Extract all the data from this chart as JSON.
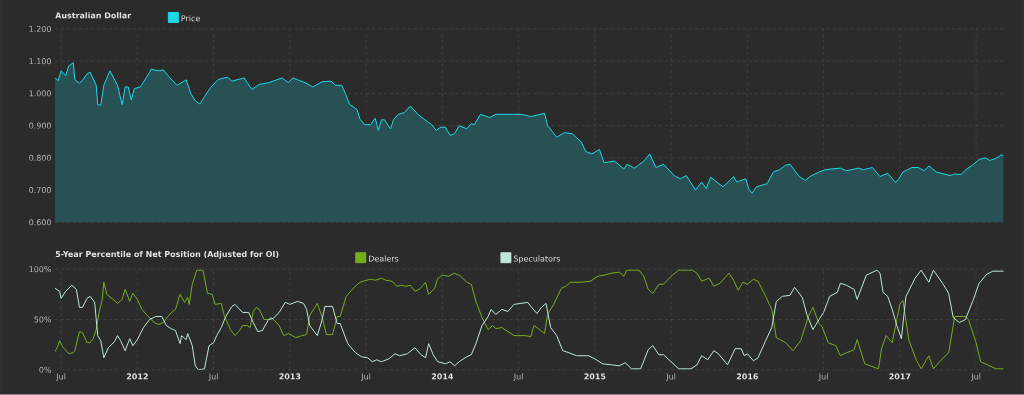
{
  "chart_data": [
    {
      "type": "area",
      "title": "Australian Dollar",
      "legend": "top left",
      "grid": true,
      "tick_labels": "y",
      "xlim": [
        2011.46,
        2017.69
      ],
      "ylim": [
        0.6,
        1.2
      ],
      "xticks": [
        {
          "value": 2011.5,
          "label": null
        },
        {
          "value": 2012,
          "label": null
        },
        {
          "value": 2012.5,
          "label": null
        },
        {
          "value": 2013,
          "label": null
        },
        {
          "value": 2013.5,
          "label": null
        },
        {
          "value": 2014,
          "label": null
        },
        {
          "value": 2014.5,
          "label": null
        },
        {
          "value": 2015,
          "label": null
        },
        {
          "value": 2015.5,
          "label": null
        },
        {
          "value": 2016,
          "label": null
        },
        {
          "value": 2016.5,
          "label": null
        },
        {
          "value": 2017,
          "label": null
        },
        {
          "value": 2017.5,
          "label": null
        }
      ],
      "yticks": [
        {
          "value": 0.6,
          "label": "0.600"
        },
        {
          "value": 0.7,
          "label": "0.700"
        },
        {
          "value": 0.8,
          "label": "0.800"
        },
        {
          "value": 0.9,
          "label": "0.900"
        },
        {
          "value": 1.0,
          "label": "1.000"
        },
        {
          "value": 1.1,
          "label": "1.100"
        },
        {
          "value": 1.2,
          "label": "1.200"
        }
      ],
      "series": [
        {
          "name": "Price",
          "color": "#19d9e8",
          "x": [
            2011.46,
            2011.48,
            2011.5,
            2011.53,
            2011.55,
            2011.58,
            2011.59,
            2011.62,
            2011.64,
            2011.67,
            2011.69,
            2011.73,
            2011.74,
            2011.76,
            2011.78,
            2011.82,
            2011.87,
            2011.9,
            2011.92,
            2011.94,
            2011.96,
            2011.98,
            2012.02,
            2012.08,
            2012.09,
            2012.14,
            2012.17,
            2012.21,
            2012.26,
            2012.32,
            2012.35,
            2012.38,
            2012.41,
            2012.45,
            2012.48,
            2012.53,
            2012.59,
            2012.62,
            2012.7,
            2012.75,
            2012.8,
            2012.86,
            2012.95,
            2012.99,
            2013.02,
            2013.1,
            2013.15,
            2013.21,
            2013.27,
            2013.3,
            2013.34,
            2013.37,
            2013.39,
            2013.44,
            2013.46,
            2013.49,
            2013.53,
            2013.56,
            2013.58,
            2013.6,
            2013.62,
            2013.66,
            2013.68,
            2013.71,
            2013.75,
            2013.79,
            2013.84,
            2013.88,
            2013.93,
            2013.96,
            2013.99,
            2014.02,
            2014.05,
            2014.08,
            2014.11,
            2014.16,
            2014.19,
            2014.21,
            2014.25,
            2014.31,
            2014.35,
            2014.43,
            2014.52,
            2014.58,
            2014.67,
            2014.69,
            2014.75,
            2014.8,
            2014.85,
            2014.91,
            2014.94,
            2014.98,
            2015.03,
            2015.06,
            2015.13,
            2015.19,
            2015.21,
            2015.26,
            2015.32,
            2015.36,
            2015.4,
            2015.45,
            2015.52,
            2015.56,
            2015.6,
            2015.66,
            2015.7,
            2015.73,
            2015.76,
            2015.84,
            2015.89,
            2015.91,
            2015.93,
            2015.99,
            2016.01,
            2016.03,
            2016.06,
            2016.13,
            2016.17,
            2016.21,
            2016.25,
            2016.28,
            2016.34,
            2016.38,
            2016.41,
            2016.47,
            2016.51,
            2016.56,
            2016.61,
            2016.65,
            2016.73,
            2016.76,
            2016.82,
            2016.87,
            2016.92,
            2016.97,
            2016.99,
            2017.02,
            2017.08,
            2017.12,
            2017.16,
            2017.19,
            2017.24,
            2017.33,
            2017.36,
            2017.4,
            2017.44,
            2017.47,
            2017.52,
            2017.56,
            2017.59,
            2017.63,
            2017.67,
            2017.68
          ],
          "values": [
            1.049,
            1.039,
            1.07,
            1.055,
            1.085,
            1.095,
            1.042,
            1.032,
            1.04,
            1.06,
            1.066,
            1.025,
            0.965,
            0.963,
            1.025,
            1.07,
            1.025,
            0.965,
            1.02,
            1.02,
            0.98,
            1.015,
            1.02,
            1.065,
            1.075,
            1.07,
            1.073,
            1.05,
            1.025,
            1.042,
            1.0,
            0.977,
            0.967,
            0.997,
            1.018,
            1.043,
            1.05,
            1.038,
            1.048,
            1.012,
            1.028,
            1.033,
            1.048,
            1.033,
            1.048,
            1.033,
            1.02,
            1.036,
            1.038,
            1.025,
            1.025,
            0.993,
            0.967,
            0.95,
            0.92,
            0.903,
            0.903,
            0.923,
            0.885,
            0.918,
            0.918,
            0.89,
            0.918,
            0.935,
            0.94,
            0.961,
            0.935,
            0.92,
            0.903,
            0.885,
            0.895,
            0.895,
            0.87,
            0.875,
            0.9,
            0.89,
            0.906,
            0.903,
            0.935,
            0.925,
            0.935,
            0.935,
            0.935,
            0.928,
            0.938,
            0.9,
            0.864,
            0.878,
            0.875,
            0.85,
            0.82,
            0.812,
            0.826,
            0.785,
            0.79,
            0.765,
            0.78,
            0.768,
            0.789,
            0.812,
            0.77,
            0.78,
            0.745,
            0.735,
            0.745,
            0.7,
            0.725,
            0.705,
            0.74,
            0.71,
            0.732,
            0.742,
            0.725,
            0.735,
            0.702,
            0.69,
            0.71,
            0.72,
            0.756,
            0.763,
            0.777,
            0.78,
            0.742,
            0.73,
            0.742,
            0.756,
            0.763,
            0.766,
            0.768,
            0.76,
            0.768,
            0.763,
            0.77,
            0.742,
            0.752,
            0.724,
            0.732,
            0.756,
            0.77,
            0.77,
            0.76,
            0.775,
            0.756,
            0.745,
            0.75,
            0.748,
            0.766,
            0.775,
            0.795,
            0.8,
            0.792,
            0.798,
            0.81,
            0.805
          ]
        }
      ]
    },
    {
      "type": "line",
      "title": "5-Year Percentile of Net Position (Adjusted for OI)",
      "legend": "top left",
      "grid": true,
      "xlim": [
        2011.46,
        2017.69
      ],
      "ylim": [
        0,
        100
      ],
      "xticks": [
        {
          "value": 2011.5,
          "label": "Jul"
        },
        2012,
        {
          "value": 2012.5,
          "label": "Jul"
        },
        2013,
        {
          "value": 2013.5,
          "label": "Jul"
        },
        2014,
        {
          "value": 2014.5,
          "label": "Jul"
        },
        2015,
        {
          "value": 2015.5,
          "label": "Jul"
        },
        2016,
        {
          "value": 2016.5,
          "label": "Jul"
        },
        2017,
        {
          "value": 2017.5,
          "label": "Jul"
        }
      ],
      "yticks": [
        {
          "value": 0,
          "label": "0%"
        },
        {
          "value": 50,
          "label": "50%"
        },
        {
          "value": 100,
          "label": "100%"
        }
      ],
      "series": [
        {
          "name": "Dealers",
          "color": "#76ad1c",
          "x": [
            2011.46,
            2011.48,
            2011.49,
            2011.51,
            2011.55,
            2011.58,
            2011.59,
            2011.62,
            2011.64,
            2011.67,
            2011.69,
            2011.71,
            2011.73,
            2011.75,
            2011.77,
            2011.78,
            2011.8,
            2011.84,
            2011.87,
            2011.9,
            2011.92,
            2011.95,
            2011.97,
            2012.0,
            2012.03,
            2012.07,
            2012.11,
            2012.14,
            2012.17,
            2012.2,
            2012.23,
            2012.25,
            2012.28,
            2012.31,
            2012.33,
            2012.34,
            2012.36,
            2012.39,
            2012.43,
            2012.46,
            2012.49,
            2012.51,
            2012.55,
            2012.57,
            2012.61,
            2012.64,
            2012.67,
            2012.69,
            2012.72,
            2012.74,
            2012.76,
            2012.78,
            2012.8,
            2012.83,
            2012.86,
            2012.88,
            2012.93,
            2012.96,
            2012.99,
            2013.04,
            2013.08,
            2013.11,
            2013.13,
            2013.18,
            2013.21,
            2013.24,
            2013.28,
            2013.31,
            2013.33,
            2013.37,
            2013.41,
            2013.43,
            2013.46,
            2013.48,
            2013.53,
            2013.56,
            2013.6,
            2013.63,
            2013.67,
            2013.7,
            2013.73,
            2013.76,
            2013.79,
            2013.82,
            2013.85,
            2013.89,
            2013.91,
            2013.95,
            2013.97,
            2014.0,
            2014.04,
            2014.08,
            2014.12,
            2014.16,
            2014.19,
            2014.22,
            2014.26,
            2014.3,
            2014.33,
            2014.35,
            2014.39,
            2014.43,
            2014.47,
            2014.54,
            2014.58,
            2014.6,
            2014.63,
            2014.67,
            2014.69,
            2014.73,
            2014.78,
            2014.81,
            2014.84,
            2014.91,
            2014.97,
            2015.02,
            2015.06,
            2015.11,
            2015.16,
            2015.19,
            2015.21,
            2015.26,
            2015.29,
            2015.32,
            2015.35,
            2015.38,
            2015.42,
            2015.45,
            2015.5,
            2015.55,
            2015.6,
            2015.64,
            2015.67,
            2015.7,
            2015.75,
            2015.78,
            2015.82,
            2015.88,
            2015.91,
            2015.94,
            2015.97,
            2016.0,
            2016.04,
            2016.07,
            2016.12,
            2016.16,
            2016.19,
            2016.25,
            2016.3,
            2016.35,
            2016.4,
            2016.43,
            2016.47,
            2016.49,
            2016.53,
            2016.58,
            2016.61,
            2016.65,
            2016.7,
            2016.72,
            2016.77,
            2016.86,
            2016.88,
            2016.91,
            2016.95,
            2016.98,
            2017.0,
            2017.02,
            2017.06,
            2017.11,
            2017.14,
            2017.19,
            2017.22,
            2017.26,
            2017.32,
            2017.36,
            2017.39,
            2017.43,
            2017.45,
            2017.5,
            2017.53,
            2017.59,
            2017.63,
            2017.68
          ],
          "values": [
            18,
            24,
            29,
            23,
            16,
            17,
            19,
            38,
            37,
            27,
            27,
            31,
            40,
            58,
            70,
            87,
            75,
            70,
            66,
            70,
            80,
            68,
            76,
            70,
            60,
            53,
            47,
            45,
            47,
            53,
            58,
            60,
            75,
            67,
            72,
            65,
            85,
            99,
            99,
            76,
            75,
            65,
            66,
            54,
            40,
            34,
            39,
            44,
            44,
            42,
            58,
            62,
            60,
            50,
            50,
            52,
            44,
            34,
            36,
            32,
            34,
            35,
            54,
            66,
            53,
            35,
            35,
            53,
            53,
            73,
            80,
            83,
            87,
            88,
            90,
            89,
            91,
            89,
            88,
            83,
            84,
            83,
            84,
            78,
            80,
            87,
            75,
            81,
            91,
            94,
            93,
            96,
            93,
            87,
            85,
            68,
            52,
            40,
            44,
            41,
            42,
            38,
            34,
            34,
            33,
            44,
            41,
            36,
            55,
            65,
            81,
            83,
            87,
            87,
            88,
            93,
            94,
            96,
            97,
            93,
            99,
            99,
            99,
            93,
            80,
            76,
            85,
            85,
            93,
            99,
            99,
            99,
            96,
            88,
            91,
            83,
            86,
            96,
            89,
            79,
            87,
            85,
            90,
            88,
            73,
            60,
            32,
            27,
            19,
            29,
            53,
            62,
            46,
            43,
            27,
            24,
            14,
            17,
            20,
            30,
            6,
            1,
            21,
            34,
            27,
            50,
            65,
            69,
            29,
            9,
            1,
            14,
            1,
            8,
            17,
            53,
            53,
            53,
            50,
            27,
            8,
            4,
            1,
            1
          ]
        },
        {
          "name": "Speculators",
          "color": "#bfe6da",
          "x": [
            2011.46,
            2011.49,
            2011.5,
            2011.53,
            2011.57,
            2011.6,
            2011.62,
            2011.64,
            2011.67,
            2011.69,
            2011.72,
            2011.74,
            2011.76,
            2011.78,
            2011.81,
            2011.85,
            2011.87,
            2011.89,
            2011.92,
            2011.95,
            2011.97,
            2012.0,
            2012.04,
            2012.08,
            2012.12,
            2012.16,
            2012.19,
            2012.22,
            2012.25,
            2012.28,
            2012.29,
            2012.32,
            2012.33,
            2012.36,
            2012.38,
            2012.4,
            2012.44,
            2012.47,
            2012.5,
            2012.52,
            2012.55,
            2012.58,
            2012.62,
            2012.64,
            2012.69,
            2012.73,
            2012.76,
            2012.79,
            2012.82,
            2012.86,
            2012.89,
            2012.93,
            2012.97,
            2013.0,
            2013.05,
            2013.09,
            2013.11,
            2013.13,
            2013.18,
            2013.21,
            2013.23,
            2013.28,
            2013.31,
            2013.33,
            2013.38,
            2013.43,
            2013.47,
            2013.51,
            2013.54,
            2013.57,
            2013.6,
            2013.65,
            2013.69,
            2013.72,
            2013.77,
            2013.82,
            2013.86,
            2013.89,
            2013.91,
            2013.94,
            2013.97,
            2014.02,
            2014.05,
            2014.08,
            2014.11,
            2014.16,
            2014.19,
            2014.22,
            2014.26,
            2014.3,
            2014.32,
            2014.35,
            2014.39,
            2014.43,
            2014.47,
            2014.56,
            2014.58,
            2014.62,
            2014.65,
            2014.68,
            2014.71,
            2014.75,
            2014.79,
            2014.83,
            2014.88,
            2014.96,
            2015.01,
            2015.05,
            2015.11,
            2015.16,
            2015.2,
            2015.24,
            2015.3,
            2015.35,
            2015.38,
            2015.42,
            2015.45,
            2015.5,
            2015.55,
            2015.63,
            2015.67,
            2015.7,
            2015.74,
            2015.78,
            2015.81,
            2015.87,
            2015.92,
            2015.96,
            2015.98,
            2016.0,
            2016.04,
            2016.07,
            2016.12,
            2016.16,
            2016.19,
            2016.23,
            2016.28,
            2016.31,
            2016.36,
            2016.39,
            2016.43,
            2016.47,
            2016.5,
            2016.54,
            2016.59,
            2016.61,
            2016.65,
            2016.7,
            2016.72,
            2016.78,
            2016.85,
            2016.87,
            2016.89,
            2016.92,
            2016.95,
            2016.98,
            2017.01,
            2017.04,
            2017.1,
            2017.14,
            2017.19,
            2017.22,
            2017.28,
            2017.32,
            2017.35,
            2017.39,
            2017.43,
            2017.48,
            2017.52,
            2017.57,
            2017.61,
            2017.68
          ],
          "values": [
            81,
            78,
            71,
            78,
            84,
            80,
            62,
            62,
            71,
            73,
            67,
            34,
            29,
            12,
            22,
            28,
            34,
            29,
            19,
            31,
            24,
            30,
            42,
            50,
            53,
            53,
            44,
            41,
            39,
            26,
            34,
            30,
            36,
            24,
            4,
            0,
            1,
            24,
            27,
            34,
            42,
            53,
            63,
            65,
            57,
            57,
            47,
            38,
            39,
            50,
            51,
            57,
            67,
            65,
            68,
            66,
            60,
            44,
            34,
            49,
            63,
            63,
            46,
            46,
            26,
            17,
            13,
            12,
            8,
            10,
            8,
            11,
            16,
            14,
            16,
            22,
            15,
            12,
            26,
            15,
            8,
            6,
            8,
            4,
            8,
            13,
            15,
            26,
            44,
            53,
            60,
            55,
            60,
            58,
            65,
            67,
            63,
            56,
            62,
            66,
            42,
            34,
            19,
            17,
            14,
            14,
            10,
            6,
            5,
            4,
            7,
            1,
            1,
            20,
            24,
            15,
            15,
            8,
            1,
            1,
            5,
            14,
            10,
            19,
            16,
            5,
            21,
            21,
            14,
            16,
            9,
            12,
            29,
            42,
            68,
            73,
            74,
            82,
            72,
            55,
            40,
            50,
            57,
            73,
            77,
            86,
            84,
            80,
            70,
            94,
            99,
            96,
            77,
            73,
            60,
            44,
            31,
            73,
            91,
            99,
            87,
            99,
            86,
            76,
            52,
            47,
            50,
            69,
            86,
            95,
            98,
            98
          ]
        }
      ]
    }
  ]
}
